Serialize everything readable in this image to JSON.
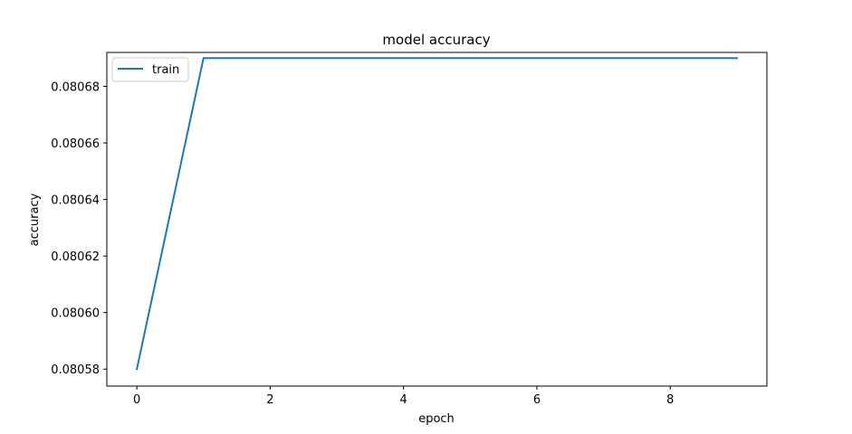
{
  "chart_data": {
    "type": "line",
    "title": "model accuracy",
    "xlabel": "epoch",
    "ylabel": "accuracy",
    "x": [
      0,
      1,
      2,
      3,
      4,
      5,
      6,
      7,
      8,
      9
    ],
    "series": [
      {
        "name": "train",
        "color": "#1f77b4",
        "values": [
          0.08058,
          0.08069,
          0.08069,
          0.08069,
          0.08069,
          0.08069,
          0.08069,
          0.08069,
          0.08069,
          0.08069
        ]
      }
    ],
    "xlim": [
      -0.45,
      9.45
    ],
    "ylim": [
      0.080574,
      0.080692
    ],
    "xticks": [
      0,
      2,
      4,
      6,
      8
    ],
    "xtick_labels": [
      "0",
      "2",
      "4",
      "6",
      "8"
    ],
    "yticks": [
      0.08058,
      0.0806,
      0.08062,
      0.08064,
      0.08066,
      0.08068
    ],
    "ytick_labels": [
      "0.08058",
      "0.08060",
      "0.08062",
      "0.08064",
      "0.08066",
      "0.08068"
    ],
    "grid": false,
    "legend_position": "top-left"
  }
}
